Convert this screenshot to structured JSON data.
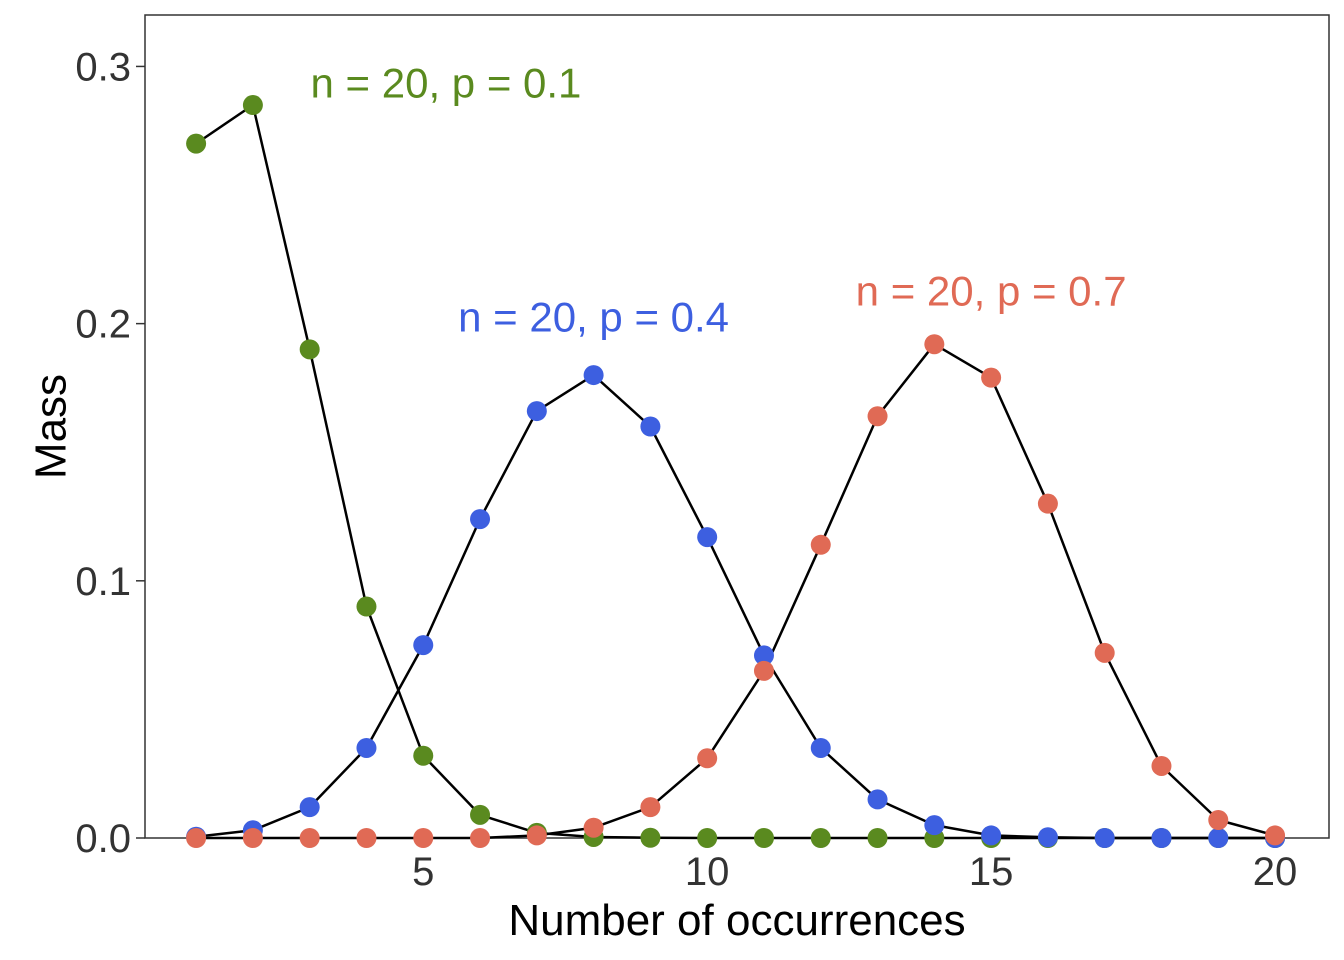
{
  "chart_data": {
    "type": "line",
    "xlabel": "Number of occurrences",
    "ylabel": "Mass",
    "xlim": [
      0.1,
      20.95
    ],
    "ylim": [
      0,
      0.32
    ],
    "xticks": [
      5,
      10,
      15,
      20
    ],
    "xtick_labels": [
      "5",
      "10",
      "15",
      "20"
    ],
    "yticks": [
      0,
      0.1,
      0.2,
      0.3
    ],
    "ytick_labels": [
      "0.0",
      "0.1",
      "0.2",
      "0.3"
    ],
    "grid": false,
    "legend": "none",
    "x": [
      1,
      2,
      3,
      4,
      5,
      6,
      7,
      8,
      9,
      10,
      11,
      12,
      13,
      14,
      15,
      16,
      17,
      18,
      19,
      20
    ],
    "series": [
      {
        "name": "n = 20, p = 0.1",
        "color": "#5a8a1f",
        "label_anchor": {
          "x": 5.4,
          "y": 0.288
        },
        "values": [
          0.27,
          0.285,
          0.19,
          0.09,
          0.032,
          0.009,
          0.002,
          0.0004,
          0.0001,
          0.0,
          0.0,
          0.0,
          0.0,
          0.0,
          0.0,
          0.0,
          0.0,
          0.0,
          0.0,
          0.0
        ]
      },
      {
        "name": "n = 20, p = 0.4",
        "color": "#3d5fe0",
        "label_anchor": {
          "x": 8.0,
          "y": 0.197
        },
        "values": [
          0.0005,
          0.003,
          0.012,
          0.035,
          0.075,
          0.124,
          0.166,
          0.18,
          0.16,
          0.117,
          0.071,
          0.035,
          0.015,
          0.005,
          0.001,
          0.0003,
          0.0,
          0.0,
          0.0,
          0.0
        ]
      },
      {
        "name": "n = 20, p = 0.7",
        "color": "#e06a55",
        "label_anchor": {
          "x": 15.0,
          "y": 0.207
        },
        "values": [
          0.0,
          0.0,
          0.0,
          0.0,
          0.0,
          0.0,
          0.001,
          0.004,
          0.012,
          0.031,
          0.065,
          0.114,
          0.164,
          0.192,
          0.179,
          0.13,
          0.072,
          0.028,
          0.007,
          0.001
        ]
      }
    ]
  }
}
